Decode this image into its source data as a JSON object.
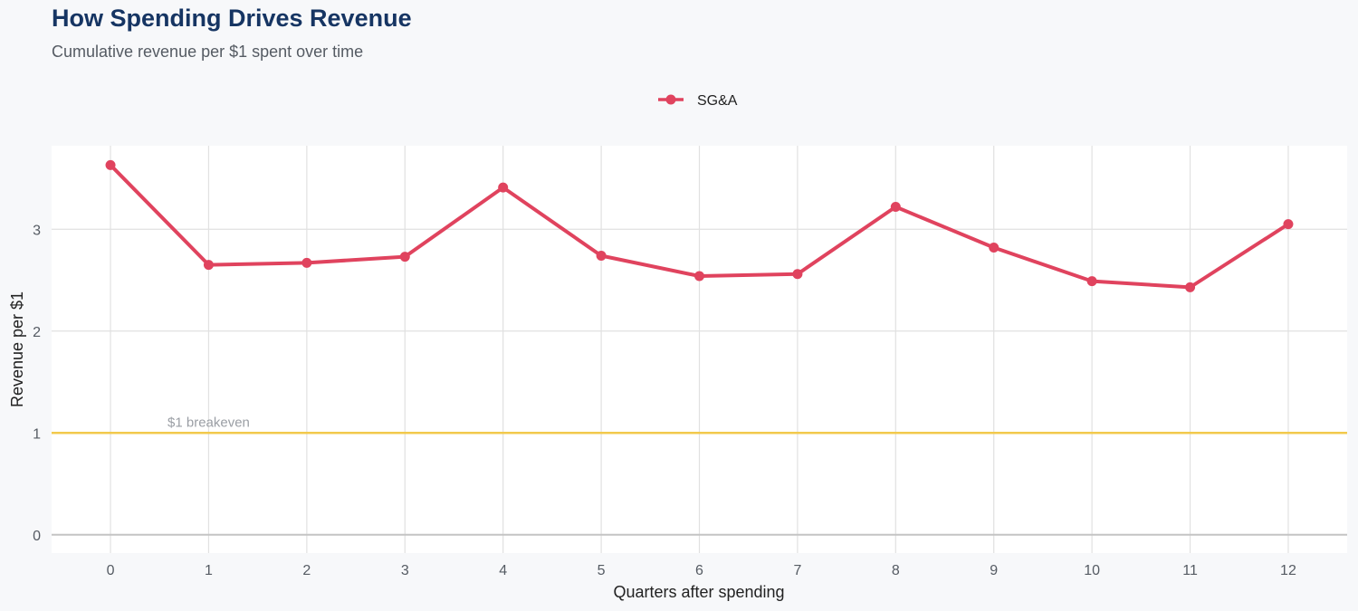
{
  "chart_data": {
    "type": "line",
    "title": "How Spending Drives Revenue",
    "subtitle": "Cumulative revenue per $1 spent over time",
    "xlabel": "Quarters after spending",
    "ylabel": "Revenue per $1",
    "x": [
      0,
      1,
      2,
      3,
      4,
      5,
      6,
      7,
      8,
      9,
      10,
      11,
      12
    ],
    "series": [
      {
        "name": "SG&A",
        "color": "#e0435e",
        "values": [
          3.63,
          2.65,
          2.67,
          2.73,
          3.41,
          2.74,
          2.54,
          2.56,
          3.22,
          2.82,
          2.49,
          2.43,
          3.05
        ]
      }
    ],
    "xlim": [
      -0.6,
      12.6
    ],
    "ylim": [
      -0.18,
      3.82
    ],
    "yticks": [
      0,
      1,
      2,
      3
    ],
    "xticks": [
      0,
      1,
      2,
      3,
      4,
      5,
      6,
      7,
      8,
      9,
      10,
      11,
      12
    ],
    "reference_line": {
      "y": 1,
      "label": "$1 breakeven",
      "color": "#f2c94c"
    },
    "legend_position": "top",
    "grid": true,
    "colors": {
      "background": "#f7f8fa",
      "panel": "#ffffff",
      "grid": "#e1e1e1",
      "title": "#163563"
    }
  }
}
